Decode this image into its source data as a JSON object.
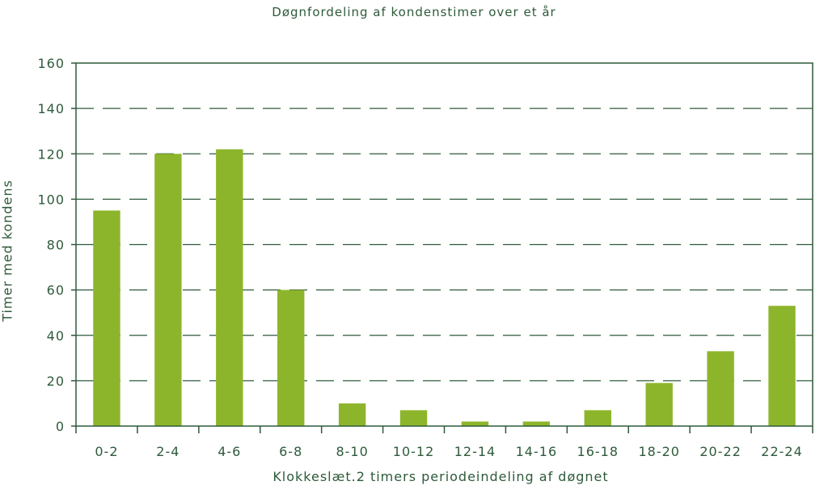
{
  "chart_data": {
    "type": "bar",
    "title": "Døgnfordeling af kondenstimer over et år",
    "xlabel": "Klokkeslæt.2 timers periodeindeling af døgnet",
    "ylabel": "Timer med kondens",
    "categories": [
      "0-2",
      "2-4",
      "4-6",
      "6-8",
      "8-10",
      "10-12",
      "12-14",
      "14-16",
      "16-18",
      "18-20",
      "20-22",
      "22-24"
    ],
    "values": [
      95,
      120,
      122,
      60,
      10,
      7,
      2,
      2,
      7,
      19,
      33,
      53
    ],
    "ylim": [
      0,
      160
    ],
    "yticks": [
      0,
      20,
      40,
      60,
      80,
      100,
      120,
      140,
      160
    ],
    "grid": true,
    "grid_style": "dashed",
    "legend": "none"
  },
  "colors": {
    "bar": "#8db52b",
    "axis": "#2e5a3a",
    "grid": "#2e5a3a",
    "text": "#2e5a3a"
  }
}
